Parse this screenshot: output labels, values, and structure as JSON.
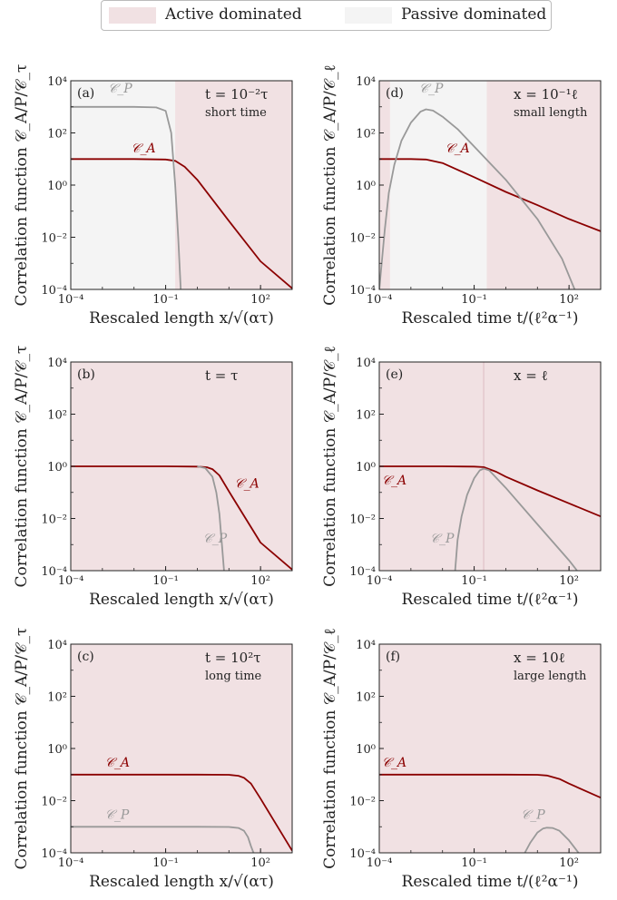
{
  "legend": {
    "active_label": "Active dominated",
    "passive_label": "Passive dominated",
    "active_color": "#f1e1e3",
    "passive_color": "#f4f4f4"
  },
  "colors": {
    "active_curve": "#8b0000",
    "passive_curve": "#999999",
    "frame": "#222222"
  },
  "chart_data": [
    {
      "id": "a",
      "type": "line",
      "panel_label": "(a)",
      "annotation": [
        "t = 10⁻²τ",
        "short time"
      ],
      "xlabel": "Rescaled length x/√(ατ)",
      "ylabel": "Correlation function 𝒞_A/P/𝒞_τ",
      "xscale": "log",
      "yscale": "log",
      "xlim": [
        0.0001,
        1000
      ],
      "ylim": [
        0.0001,
        10000
      ],
      "xticks": [
        0.0001,
        0.1,
        100
      ],
      "xtick_labels": [
        "10⁻⁴",
        "10⁻¹",
        "10²"
      ],
      "yticks": [
        0.0001,
        0.01,
        1,
        100,
        10000
      ],
      "ytick_labels": [
        "10⁻⁴",
        "10⁻²",
        "10⁰",
        "10²",
        "10⁴"
      ],
      "regions": [
        {
          "kind": "passive",
          "x": [
            0.0001,
            0.2
          ]
        },
        {
          "kind": "active",
          "x": [
            0.2,
            1000
          ]
        }
      ],
      "series": [
        {
          "name": "𝒞_A",
          "kind": "active",
          "x": [
            0.0001,
            0.01,
            0.1,
            0.2,
            0.4,
            1,
            10,
            100,
            1000
          ],
          "y": [
            10,
            10,
            9.6,
            8.5,
            5.0,
            1.6,
            0.042,
            0.0012,
            0.00011
          ]
        },
        {
          "name": "𝒞_P",
          "kind": "passive",
          "x": [
            0.0001,
            0.01,
            0.05,
            0.1,
            0.15,
            0.2,
            0.25,
            0.3
          ],
          "y": [
            1000,
            1000,
            950,
            700,
            100,
            1,
            0.01,
            0.0001
          ]
        }
      ],
      "labels": [
        {
          "series": 0,
          "text": "𝒞_A",
          "x": 0.008,
          "y": 18
        },
        {
          "series": 1,
          "text": "𝒞_P",
          "x": 0.0015,
          "y": 3500
        }
      ]
    },
    {
      "id": "b",
      "type": "line",
      "panel_label": "(b)",
      "annotation": [
        "t = τ"
      ],
      "xlabel": "Rescaled length x/√(ατ)",
      "ylabel": "Correlation function 𝒞_A/P/𝒞_τ",
      "xscale": "log",
      "yscale": "log",
      "xlim": [
        0.0001,
        1000
      ],
      "ylim": [
        0.0001,
        10000
      ],
      "xticks": [
        0.0001,
        0.1,
        100
      ],
      "xtick_labels": [
        "10⁻⁴",
        "10⁻¹",
        "10²"
      ],
      "yticks": [
        0.0001,
        0.01,
        1,
        100,
        10000
      ],
      "ytick_labels": [
        "10⁻⁴",
        "10⁻²",
        "10⁰",
        "10²",
        "10⁴"
      ],
      "regions": [
        {
          "kind": "active",
          "x": [
            0.0001,
            1000
          ]
        }
      ],
      "series": [
        {
          "name": "𝒞_A",
          "kind": "active",
          "x": [
            0.0001,
            0.1,
            1,
            2,
            3,
            5,
            10,
            100,
            1000
          ],
          "y": [
            1,
            1,
            0.98,
            0.92,
            0.78,
            0.45,
            0.11,
            0.0012,
            0.00011
          ]
        },
        {
          "name": "𝒞_P",
          "kind": "passive",
          "x": [
            1,
            1.8,
            3,
            4,
            5,
            6,
            7
          ],
          "y": [
            1,
            0.85,
            0.4,
            0.1,
            0.015,
            0.001,
            0.0001
          ]
        }
      ],
      "labels": [
        {
          "series": 0,
          "text": "𝒞_A",
          "x": 15,
          "y": 0.15
        },
        {
          "series": 1,
          "text": "𝒞_P",
          "x": 1.5,
          "y": 0.0012
        }
      ]
    },
    {
      "id": "c",
      "type": "line",
      "panel_label": "(c)",
      "annotation": [
        "t = 10²τ",
        "long time"
      ],
      "xlabel": "Rescaled length x/√(ατ)",
      "ylabel": "Correlation function 𝒞_A/P/𝒞_τ",
      "xscale": "log",
      "yscale": "log",
      "xlim": [
        0.0001,
        1000
      ],
      "ylim": [
        0.0001,
        10000
      ],
      "xticks": [
        0.0001,
        0.1,
        100
      ],
      "xtick_labels": [
        "10⁻⁴",
        "10⁻¹",
        "10²"
      ],
      "yticks": [
        0.0001,
        0.01,
        1,
        100,
        10000
      ],
      "ytick_labels": [
        "10⁻⁴",
        "10⁻²",
        "10⁰",
        "10²",
        "10⁴"
      ],
      "regions": [
        {
          "kind": "active",
          "x": [
            0.0001,
            1000
          ]
        }
      ],
      "series": [
        {
          "name": "𝒞_A",
          "kind": "active",
          "x": [
            0.0001,
            1,
            10,
            20,
            30,
            50,
            100,
            1000
          ],
          "y": [
            0.1,
            0.1,
            0.098,
            0.09,
            0.075,
            0.045,
            0.012,
            0.00012
          ]
        },
        {
          "name": "𝒞_P",
          "kind": "passive",
          "x": [
            0.0001,
            1,
            10,
            20,
            30,
            40,
            50,
            60
          ],
          "y": [
            0.001,
            0.001,
            0.00098,
            0.0009,
            0.0007,
            0.0004,
            0.00018,
            0.0001
          ]
        }
      ],
      "labels": [
        {
          "series": 0,
          "text": "𝒞_A",
          "x": 0.0012,
          "y": 0.2
        },
        {
          "series": 1,
          "text": "𝒞_P",
          "x": 0.0012,
          "y": 0.002
        }
      ]
    },
    {
      "id": "d",
      "type": "line",
      "panel_label": "(d)",
      "annotation": [
        "x = 10⁻¹ℓ",
        "small length"
      ],
      "xlabel": "Rescaled time t/(ℓ²α⁻¹)",
      "ylabel": "Correlation function 𝒞_A/P/𝒞_ℓ",
      "xscale": "log",
      "yscale": "log",
      "xlim": [
        0.0001,
        1000
      ],
      "ylim": [
        0.0001,
        10000
      ],
      "xticks": [
        0.0001,
        0.1,
        100
      ],
      "xtick_labels": [
        "10⁻⁴",
        "10⁻¹",
        "10²"
      ],
      "yticks": [
        0.0001,
        0.01,
        1,
        100,
        10000
      ],
      "ytick_labels": [
        "10⁻⁴",
        "10⁻²",
        "10⁰",
        "10²",
        "10⁴"
      ],
      "regions": [
        {
          "kind": "active",
          "x": [
            0.0001,
            0.00022
          ]
        },
        {
          "kind": "passive",
          "x": [
            0.00022,
            0.25
          ]
        },
        {
          "kind": "active",
          "x": [
            0.25,
            1000
          ]
        }
      ],
      "series": [
        {
          "name": "𝒞_A",
          "kind": "active",
          "x": [
            0.0001,
            0.001,
            0.003,
            0.01,
            0.1,
            1,
            10,
            100,
            1000
          ],
          "y": [
            10,
            10,
            9.6,
            7,
            2,
            0.55,
            0.17,
            0.05,
            0.017
          ]
        },
        {
          "name": "𝒞_P",
          "kind": "passive",
          "x": [
            0.0001,
            0.00015,
            0.0002,
            0.0003,
            0.0005,
            0.001,
            0.002,
            0.003,
            0.005,
            0.01,
            0.03,
            0.1,
            1,
            10,
            60,
            150
          ],
          "y": [
            0.0001,
            0.02,
            0.5,
            6,
            50,
            250,
            650,
            800,
            720,
            420,
            140,
            30,
            1.6,
            0.05,
            0.0015,
            0.0001
          ]
        }
      ],
      "labels": [
        {
          "series": 0,
          "text": "𝒞_A",
          "x": 0.012,
          "y": 18
        },
        {
          "series": 1,
          "text": "𝒞_P",
          "x": 0.0018,
          "y": 3500
        }
      ]
    },
    {
      "id": "e",
      "type": "line",
      "panel_label": "(e)",
      "annotation": [
        "x = ℓ"
      ],
      "xlabel": "Rescaled time t/(ℓ²α⁻¹)",
      "ylabel": "Correlation function 𝒞_A/P/𝒞_ℓ",
      "xscale": "log",
      "yscale": "log",
      "xlim": [
        0.0001,
        1000
      ],
      "ylim": [
        0.0001,
        10000
      ],
      "xticks": [
        0.0001,
        0.1,
        100
      ],
      "xtick_labels": [
        "10⁻⁴",
        "10⁻¹",
        "10²"
      ],
      "yticks": [
        0.0001,
        0.01,
        1,
        100,
        10000
      ],
      "ytick_labels": [
        "10⁻⁴",
        "10⁻²",
        "10⁰",
        "10²",
        "10⁴"
      ],
      "regions": [
        {
          "kind": "active",
          "x": [
            0.0001,
            1000
          ]
        }
      ],
      "vline": 0.2,
      "series": [
        {
          "name": "𝒞_A",
          "kind": "active",
          "x": [
            0.0001,
            0.01,
            0.1,
            0.2,
            0.5,
            1,
            10,
            100,
            1000
          ],
          "y": [
            1,
            1,
            0.98,
            0.93,
            0.62,
            0.4,
            0.12,
            0.038,
            0.012
          ]
        },
        {
          "name": "𝒞_P",
          "kind": "passive",
          "x": [
            0.025,
            0.03,
            0.04,
            0.06,
            0.1,
            0.15,
            0.2,
            0.3,
            1,
            10,
            100,
            180
          ],
          "y": [
            0.0001,
            0.0015,
            0.012,
            0.08,
            0.35,
            0.7,
            0.82,
            0.7,
            0.15,
            0.006,
            0.00025,
            0.0001
          ]
        }
      ],
      "labels": [
        {
          "series": 0,
          "text": "𝒞_A",
          "x": 0.00012,
          "y": 0.2
        },
        {
          "series": 1,
          "text": "𝒞_P",
          "x": 0.004,
          "y": 0.0012
        }
      ]
    },
    {
      "id": "f",
      "type": "line",
      "panel_label": "(f)",
      "annotation": [
        "x = 10ℓ",
        "large length"
      ],
      "xlabel": "Rescaled time t/(ℓ²α⁻¹)",
      "ylabel": "Correlation function 𝒞_A/P/𝒞_ℓ",
      "xscale": "log",
      "yscale": "log",
      "xlim": [
        0.0001,
        1000
      ],
      "ylim": [
        0.0001,
        10000
      ],
      "xticks": [
        0.0001,
        0.1,
        100
      ],
      "xtick_labels": [
        "10⁻⁴",
        "10⁻¹",
        "10²"
      ],
      "yticks": [
        0.0001,
        0.01,
        1,
        100,
        10000
      ],
      "ytick_labels": [
        "10⁻⁴",
        "10⁻²",
        "10⁰",
        "10²",
        "10⁴"
      ],
      "regions": [
        {
          "kind": "active",
          "x": [
            0.0001,
            1000
          ]
        }
      ],
      "series": [
        {
          "name": "𝒞_A",
          "kind": "active",
          "x": [
            0.0001,
            1,
            10,
            20,
            50,
            100,
            1000
          ],
          "y": [
            0.1,
            0.1,
            0.098,
            0.092,
            0.068,
            0.045,
            0.013
          ]
        },
        {
          "name": "𝒞_P",
          "kind": "passive",
          "x": [
            4,
            6,
            10,
            15,
            20,
            30,
            50,
            100,
            200
          ],
          "y": [
            0.0001,
            0.00025,
            0.0006,
            0.00085,
            0.00092,
            0.0009,
            0.0007,
            0.0003,
            0.0001
          ]
        }
      ],
      "labels": [
        {
          "series": 0,
          "text": "𝒞_A",
          "x": 0.00012,
          "y": 0.2
        },
        {
          "series": 1,
          "text": "𝒞_P",
          "x": 3,
          "y": 0.002
        }
      ]
    }
  ]
}
